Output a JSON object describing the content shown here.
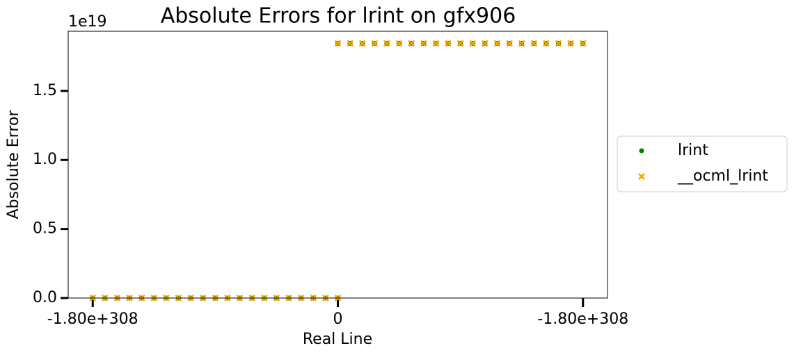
{
  "chart_data": {
    "type": "scatter",
    "title": "Absolute Errors for lrint on gfx906",
    "x_label": "Real Line",
    "y_label": "Absolute Error",
    "y_offset_label": "1e19",
    "x": [
      -1,
      -0.95,
      -0.9,
      -0.85,
      -0.8,
      -0.75,
      -0.7,
      -0.65,
      -0.6,
      -0.55,
      -0.5,
      -0.45,
      -0.4,
      -0.35,
      -0.3,
      -0.25,
      -0.2,
      -0.15,
      -0.1,
      -0.05,
      0,
      0,
      0.05,
      0.1,
      0.15,
      0.2,
      0.25,
      0.3,
      0.35,
      0.4,
      0.45,
      0.5,
      0.55,
      0.6,
      0.65,
      0.7,
      0.75,
      0.8,
      0.85,
      0.9,
      0.95,
      1
    ],
    "series": [
      {
        "name": "lrint",
        "color": "green",
        "marker": "o",
        "values": [
          0,
          0,
          0,
          0,
          0,
          0,
          0,
          0,
          0,
          0,
          0,
          0,
          0,
          0,
          0,
          0,
          0,
          0,
          0,
          0,
          0,
          1.8447e+19,
          1.8447e+19,
          1.8447e+19,
          1.8447e+19,
          1.8447e+19,
          1.8447e+19,
          1.8447e+19,
          1.8447e+19,
          1.8447e+19,
          1.8447e+19,
          1.8447e+19,
          1.8447e+19,
          1.8447e+19,
          1.8447e+19,
          1.8447e+19,
          1.8447e+19,
          1.8447e+19,
          1.8447e+19,
          1.8447e+19,
          1.8447e+19,
          1.8447e+19
        ]
      },
      {
        "name": "__ocml_lrint",
        "color": "orange",
        "marker": "x",
        "values": [
          0,
          0,
          0,
          0,
          0,
          0,
          0,
          0,
          0,
          0,
          0,
          0,
          0,
          0,
          0,
          0,
          0,
          0,
          0,
          0,
          0,
          1.8447e+19,
          1.8447e+19,
          1.8447e+19,
          1.8447e+19,
          1.8447e+19,
          1.8447e+19,
          1.8447e+19,
          1.8447e+19,
          1.8447e+19,
          1.8447e+19,
          1.8447e+19,
          1.8447e+19,
          1.8447e+19,
          1.8447e+19,
          1.8447e+19,
          1.8447e+19,
          1.8447e+19,
          1.8447e+19,
          1.8447e+19,
          1.8447e+19,
          1.8447e+19
        ]
      }
    ],
    "xlim": [
      -1.1,
      1.1
    ],
    "xticks": [
      {
        "value": -1,
        "label": "-1.80e+308"
      },
      0,
      {
        "value": 1,
        "label": "-1.80e+308"
      }
    ],
    "ylim": [
      0,
      1.932e+19
    ],
    "yticks": [
      {
        "value": 0,
        "label": "0.0"
      },
      {
        "value": 5e+18,
        "label": "0.5"
      },
      {
        "value": 1e+19,
        "label": "1.0"
      },
      {
        "value": 1.5e+19,
        "label": "1.5"
      }
    ],
    "grid": false,
    "legend": "outside right"
  }
}
